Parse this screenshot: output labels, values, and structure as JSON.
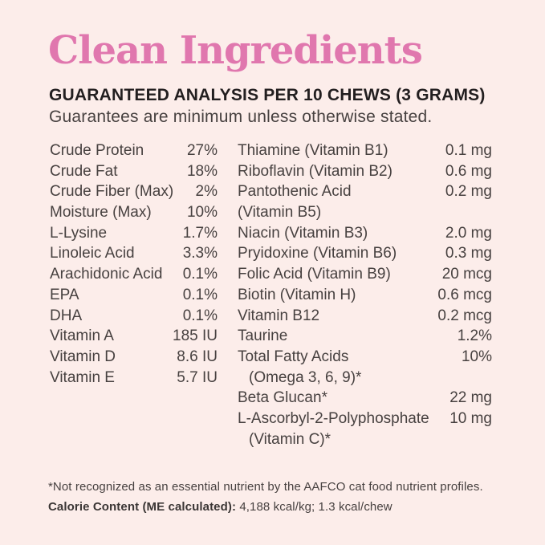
{
  "header": {
    "title": "Clean Ingredients",
    "heading": "GUARANTEED ANALYSIS PER 10 CHEWS (3 GRAMS)",
    "subheading": "Guarantees are minimum unless otherwise stated."
  },
  "analysis": {
    "left_column": [
      {
        "label": "Crude Protein",
        "value": "27%"
      },
      {
        "label": "Crude Fat",
        "value": "18%"
      },
      {
        "label": "Crude Fiber (Max)",
        "value": "2%"
      },
      {
        "label": "Moisture (Max)",
        "value": "10%"
      },
      {
        "label": "L-Lysine",
        "value": "1.7%"
      },
      {
        "label": "Linoleic Acid",
        "value": "3.3%"
      },
      {
        "label": "Arachidonic Acid",
        "value": "0.1%"
      },
      {
        "label": "EPA",
        "value": "0.1%"
      },
      {
        "label": "DHA",
        "value": "0.1%"
      },
      {
        "label": "Vitamin A",
        "value": "185 IU"
      },
      {
        "label": "Vitamin D",
        "value": "8.6 IU"
      },
      {
        "label": "Vitamin E",
        "value": "5.7 IU"
      }
    ],
    "right_column": [
      {
        "label": "Thiamine (Vitamin B1)",
        "value": "0.1 mg"
      },
      {
        "label": "Riboflavin (Vitamin B2)",
        "value": "0.6 mg"
      },
      {
        "label": "Pantothenic Acid",
        "value": "0.2 mg"
      },
      {
        "label": "(Vitamin B5)",
        "value": "",
        "indent": false
      },
      {
        "label": "Niacin (Vitamin B3)",
        "value": "2.0 mg"
      },
      {
        "label": "Pryidoxine (Vitamin B6)",
        "value": "0.3 mg"
      },
      {
        "label": "Folic Acid (Vitamin B9)",
        "value": "20 mcg"
      },
      {
        "label": "Biotin (Vitamin H)",
        "value": "0.6 mcg"
      },
      {
        "label": "Vitamin B12",
        "value": "0.2 mcg"
      },
      {
        "label": "Taurine",
        "value": "1.2%"
      },
      {
        "label": "Total Fatty Acids",
        "value": "10%"
      },
      {
        "label": "(Omega 3, 6, 9)*",
        "value": "",
        "indent": true
      },
      {
        "label": "Beta Glucan*",
        "value": "22 mg"
      },
      {
        "label": "L-Ascorbyl-2-Polyphosphate",
        "value": "10 mg"
      },
      {
        "label": "(Vitamin C)*",
        "value": "",
        "indent": true
      }
    ]
  },
  "footer": {
    "footnote": "*Not recognized as an essential nutrient by the AAFCO cat food nutrient profiles.",
    "calorie_label": "Calorie Content (ME calculated):",
    "calorie_value": " 4,188 kcal/kg; 1.3 kcal/chew"
  },
  "colors": {
    "background": "#fcedea",
    "accent_pink": "#e077ae",
    "heading_text": "#231f20",
    "body_text": "#474140"
  }
}
